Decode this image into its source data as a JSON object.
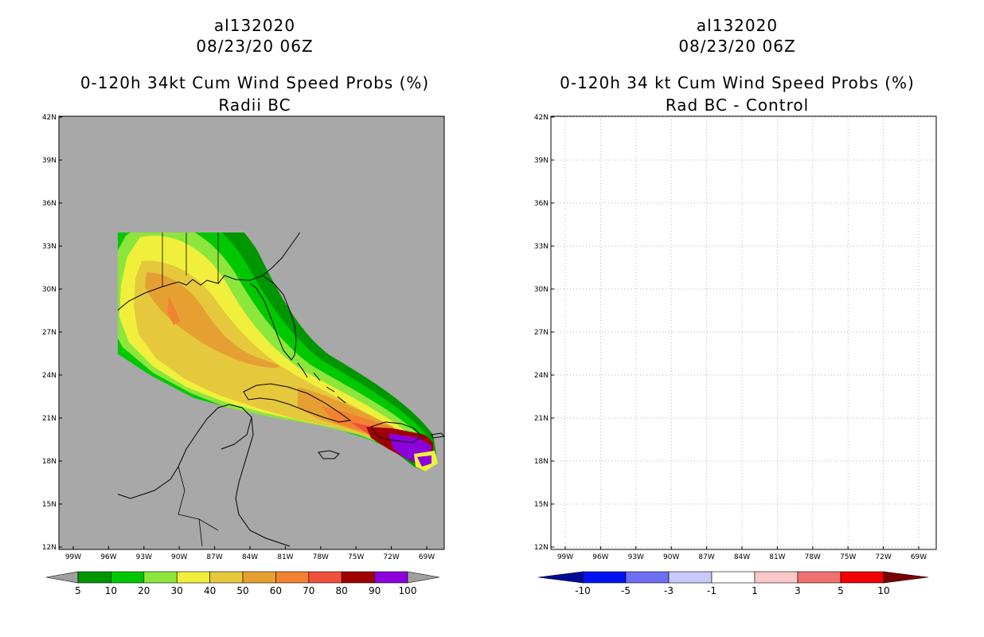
{
  "panels": [
    {
      "storm_id": "al132020",
      "datetime": "08/23/20 06Z",
      "title_line1": "0-120h 34kt Cum Wind Speed Probs (%)",
      "title_line2": "Radii BC",
      "background_color": "#a8a8a8",
      "colorbar": {
        "labels": [
          "5",
          "10",
          "20",
          "30",
          "40",
          "50",
          "60",
          "70",
          "80",
          "90",
          "100"
        ],
        "colors": [
          "#009600",
          "#00c800",
          "#8ce63c",
          "#f0f03c",
          "#e6c83c",
          "#e6a032",
          "#f08232",
          "#f0503c",
          "#a00000",
          "#8c00dc"
        ],
        "end_arrow_color": "#a0a0a0"
      }
    },
    {
      "storm_id": "al132020",
      "datetime": "08/23/20 06Z",
      "title_line1": "0-120h 34 kt Cum Wind Speed Probs (%)",
      "title_line2": "Rad BC - Control",
      "background_color": "#ffffff",
      "colorbar": {
        "labels": [
          "-10",
          "-5",
          "-3",
          "-1",
          "1",
          "3",
          "5",
          "10"
        ],
        "colors": [
          "#000a96",
          "#0014f0",
          "#6e6ef0",
          "#c8c8fa",
          "#ffffff",
          "#fac8c8",
          "#f07070",
          "#f00000",
          "#780000"
        ],
        "left_arrow_color": "#000a96",
        "right_arrow_color": "#780000"
      }
    }
  ],
  "axes": {
    "lat_labels": [
      "42N",
      "39N",
      "36N",
      "33N",
      "30N",
      "27N",
      "24N",
      "21N",
      "18N",
      "15N",
      "12N"
    ],
    "lon_labels": [
      "99W",
      "96W",
      "93W",
      "90W",
      "87W",
      "84W",
      "81W",
      "78W",
      "75W",
      "72W",
      "69W"
    ]
  }
}
